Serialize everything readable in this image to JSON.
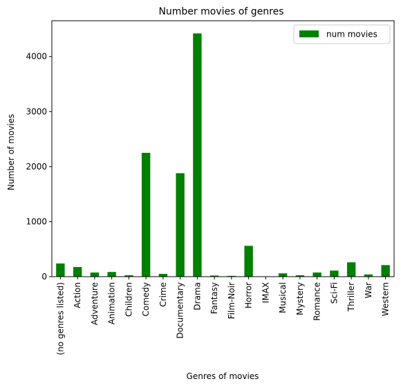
{
  "chart_data": {
    "type": "bar",
    "title": "Number movies of genres",
    "xlabel": "Genres of movies",
    "ylabel": "Number of movies",
    "categories": [
      "(no genres listed)",
      "Action",
      "Adventure",
      "Animation",
      "Children",
      "Comedy",
      "Crime",
      "Documentary",
      "Drama",
      "Fantasy",
      "Film-Noir",
      "Horror",
      "IMAX",
      "Musical",
      "Mystery",
      "Romance",
      "Sci-Fi",
      "Thriller",
      "War",
      "Western"
    ],
    "series": [
      {
        "name": "num movies",
        "color": "#008000",
        "values": [
          240,
          175,
          75,
          85,
          25,
          2250,
          50,
          1880,
          4420,
          20,
          15,
          560,
          2,
          60,
          25,
          75,
          110,
          260,
          40,
          210
        ]
      }
    ],
    "ylim": [
      0,
      4650
    ],
    "yticks": [
      0,
      1000,
      2000,
      3000,
      4000
    ],
    "grid": false,
    "legend_position": "top-right"
  }
}
